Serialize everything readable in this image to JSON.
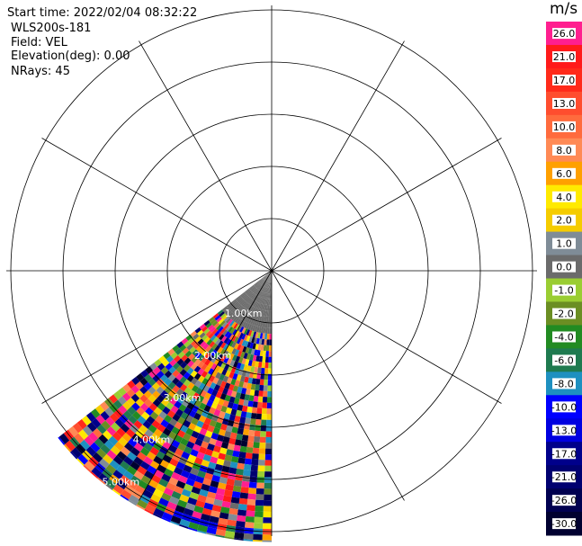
{
  "header": {
    "start_time": "Start time: 2022/02/04 08:32:22",
    "instrument": "WLS200s-181",
    "field": "Field: VEL",
    "elevation": "Elevation(deg): 0.00",
    "nrays": "NRays: 45"
  },
  "colorbar": {
    "unit": "m/s",
    "levels": [
      {
        "label": "26.0",
        "color": "#ff1f8f"
      },
      {
        "label": "21.0",
        "color": "#ff1a1a"
      },
      {
        "label": "17.0",
        "color": "#ff2a1a"
      },
      {
        "label": "13.0",
        "color": "#ff4d2e"
      },
      {
        "label": "10.0",
        "color": "#ff6b3d"
      },
      {
        "label": "8.0",
        "color": "#ff8a55"
      },
      {
        "label": "6.0",
        "color": "#ffa000"
      },
      {
        "label": "4.0",
        "color": "#ffea00"
      },
      {
        "label": "2.0",
        "color": "#f5cc00"
      },
      {
        "label": "1.0",
        "color": "#7f8c97"
      },
      {
        "label": "0.0",
        "color": "#6b6b6b"
      },
      {
        "label": "-1.0",
        "color": "#9acd32"
      },
      {
        "label": "-2.0",
        "color": "#6b8e23"
      },
      {
        "label": "-4.0",
        "color": "#228b22"
      },
      {
        "label": "-6.0",
        "color": "#1f7a4f"
      },
      {
        "label": "-8.0",
        "color": "#1e90c0"
      },
      {
        "label": "-10.0",
        "color": "#0000ff"
      },
      {
        "label": "-13.0",
        "color": "#0000e0"
      },
      {
        "label": "-17.0",
        "color": "#00008b"
      },
      {
        "label": "-21.0",
        "color": "#000070"
      },
      {
        "label": "-26.0",
        "color": "#000050"
      },
      {
        "label": "-30.0",
        "color": "#000030"
      }
    ]
  },
  "rings": {
    "labels": [
      "1.00km",
      "2.00km",
      "3.00km",
      "4.00km",
      "5.00km"
    ]
  },
  "scan": {
    "start_azimuth_deg": 180,
    "end_azimuth_deg": 232,
    "near_range_color": "#6b6b6b"
  }
}
